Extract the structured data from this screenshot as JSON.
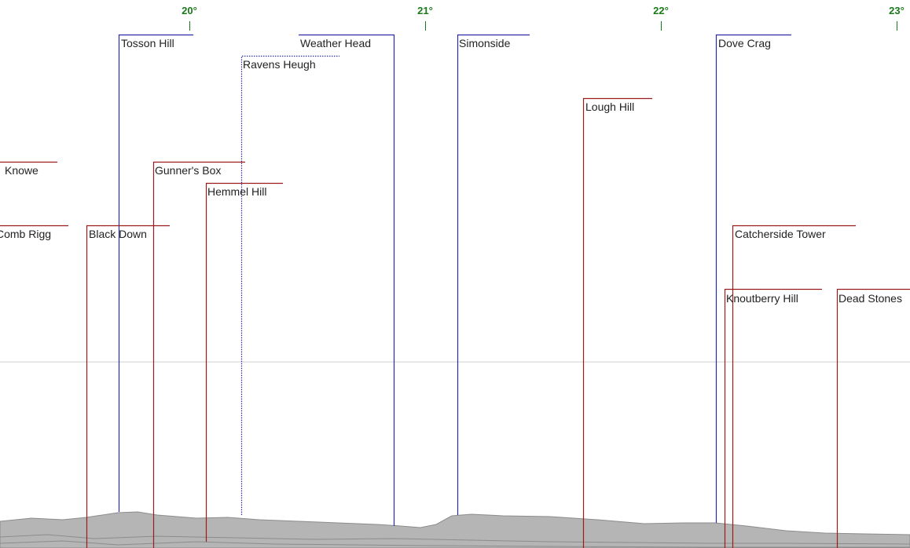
{
  "colors": {
    "near_peak": "#9a1c1c",
    "far_peak": "#2b2ba6",
    "degree_label": "#1a7a1a",
    "horizon_line": "#cfcfcf",
    "terrain_fill": "#b5b5b5",
    "terrain_edge": "#8c8c8c"
  },
  "degree_ticks": [
    {
      "label": "20°"
    },
    {
      "label": "21°"
    },
    {
      "label": "22°"
    },
    {
      "label": "23°"
    }
  ],
  "peaks": [
    {
      "name": "Tosson Hill",
      "color": "far"
    },
    {
      "name": "Weather Head",
      "color": "far"
    },
    {
      "name": "Simonside",
      "color": "far"
    },
    {
      "name": "Dove Crag",
      "color": "far"
    },
    {
      "name": "Ravens Heugh",
      "color": "far",
      "style": "dotted"
    },
    {
      "name": "Lough Hill",
      "color": "near"
    },
    {
      "name": "Knowe",
      "color": "near"
    },
    {
      "name": "Gunner's Box",
      "color": "near"
    },
    {
      "name": "Hemmel Hill",
      "color": "near"
    },
    {
      "name": "Comb Rigg",
      "color": "near"
    },
    {
      "name": "Black Down",
      "color": "near"
    },
    {
      "name": "Catcherside Tower",
      "color": "near"
    },
    {
      "name": "Knoutberry Hill",
      "color": "near"
    },
    {
      "name": "Dead Stones",
      "color": "near"
    }
  ]
}
